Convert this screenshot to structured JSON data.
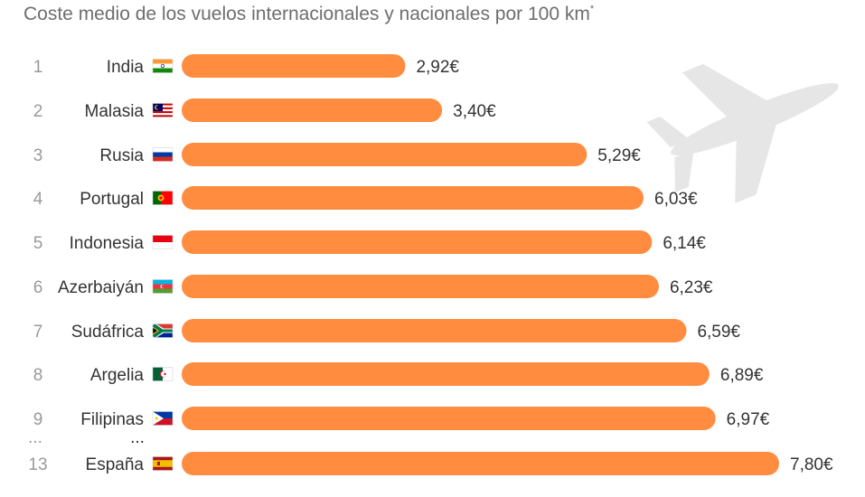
{
  "subtitle": "Coste medio de los vuelos internacionales y nacionales por 100 km",
  "subtitle_mark": "*",
  "gap_marker": "...",
  "colors": {
    "bar": "#ff8c3f",
    "plane": "#e6e6e6"
  },
  "decoration": "airplane-icon",
  "chart_data": {
    "type": "bar",
    "orientation": "horizontal",
    "title": "",
    "subtitle": "Coste medio de los vuelos internacionales y nacionales por 100 km*",
    "unit": "€",
    "xlim": [
      0,
      7.8
    ],
    "grid": false,
    "legend": "none",
    "ranks": [
      "1",
      "2",
      "3",
      "4",
      "5",
      "6",
      "7",
      "8",
      "9",
      "13"
    ],
    "categories": [
      "India",
      "Malasia",
      "Rusia",
      "Portugal",
      "Indonesia",
      "Azerbaiyán",
      "Sudáfrica",
      "Argelia",
      "Filipinas",
      "España"
    ],
    "flags": [
      "flag-india-icon",
      "flag-malaysia-icon",
      "flag-russia-icon",
      "flag-portugal-icon",
      "flag-indonesia-icon",
      "flag-azerbaijan-icon",
      "flag-south-africa-icon",
      "flag-algeria-icon",
      "flag-philippines-icon",
      "flag-spain-icon"
    ],
    "values": [
      2.92,
      3.4,
      5.29,
      6.03,
      6.14,
      6.23,
      6.59,
      6.89,
      6.97,
      7.8
    ],
    "labels": [
      "2,92€",
      "3,40€",
      "5,29€",
      "6,03€",
      "6,14€",
      "6,23€",
      "6,59€",
      "6,89€",
      "6,97€",
      "7,80€"
    ]
  }
}
